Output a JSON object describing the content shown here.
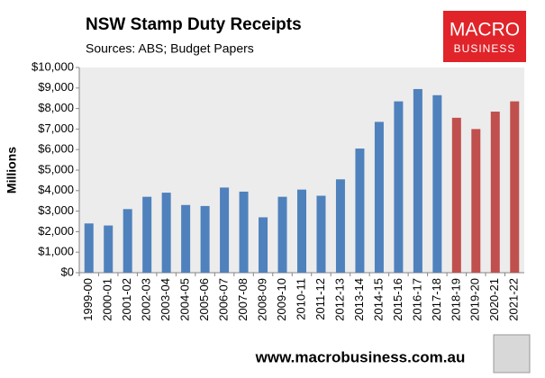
{
  "chart_data": {
    "type": "bar",
    "title": "NSW Stamp Duty Receipts",
    "subtitle": "Sources: ABS; Budget Papers",
    "y_label": "Millions",
    "footer": "www.macrobusiness.com.au",
    "categories": [
      "1999-00",
      "2000-01",
      "2001-02",
      "2002-03",
      "2003-04",
      "2004-05",
      "2005-06",
      "2006-07",
      "2007-08",
      "2008-09",
      "2009-10",
      "2010-11",
      "2011-12",
      "2012-13",
      "2013-14",
      "2014-15",
      "2015-16",
      "2016-17",
      "2017-18",
      "2018-19",
      "2019-20",
      "2020-21",
      "2021-22"
    ],
    "values": [
      2400,
      2300,
      3100,
      3700,
      3900,
      3300,
      3250,
      4150,
      3950,
      2700,
      3700,
      4050,
      3750,
      4550,
      6050,
      7350,
      8350,
      8950,
      8650,
      7550,
      7000,
      7850,
      8350
    ],
    "colors": [
      "#4f81bd",
      "#4f81bd",
      "#4f81bd",
      "#4f81bd",
      "#4f81bd",
      "#4f81bd",
      "#4f81bd",
      "#4f81bd",
      "#4f81bd",
      "#4f81bd",
      "#4f81bd",
      "#4f81bd",
      "#4f81bd",
      "#4f81bd",
      "#4f81bd",
      "#4f81bd",
      "#4f81bd",
      "#4f81bd",
      "#4f81bd",
      "#c0504d",
      "#c0504d",
      "#c0504d",
      "#c0504d"
    ],
    "ylim": [
      0,
      10000
    ],
    "yticks": [
      {
        "value": 0,
        "label": "$0"
      },
      {
        "value": 1000,
        "label": "$1,000"
      },
      {
        "value": 2000,
        "label": "$2,000"
      },
      {
        "value": 3000,
        "label": "$3,000"
      },
      {
        "value": 4000,
        "label": "$4,000"
      },
      {
        "value": 5000,
        "label": "$5,000"
      },
      {
        "value": 6000,
        "label": "$6,000"
      },
      {
        "value": 7000,
        "label": "$7,000"
      },
      {
        "value": 8000,
        "label": "$8,000"
      },
      {
        "value": 9000,
        "label": "$9,000"
      },
      {
        "value": 10000,
        "label": "$10,000"
      }
    ],
    "grid": false
  },
  "logo": {
    "line1": "MACRO",
    "line2": "BUSINESS"
  }
}
